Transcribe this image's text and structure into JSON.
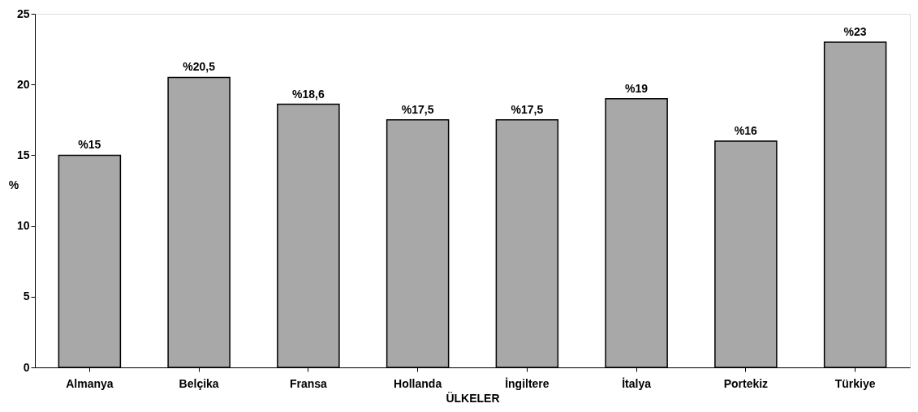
{
  "chart_data": {
    "type": "bar",
    "xlabel": "ÜLKELER",
    "ylabel": "%",
    "categories": [
      "Almanya",
      "Belçika",
      "Fransa",
      "Hollanda",
      "İngiltere",
      "İtalya",
      "Portekiz",
      "Türkiye"
    ],
    "values": [
      15,
      20.5,
      18.6,
      17.5,
      17.5,
      19,
      16,
      23
    ],
    "value_labels": [
      "%15",
      "%20,5",
      "%18,6",
      "%17,5",
      "%17,5",
      "%19",
      "%16",
      "%23"
    ],
    "color": "#a8a8a8",
    "ylim": [
      0,
      25
    ],
    "yticks": [
      0,
      5,
      10,
      15,
      20,
      25
    ],
    "grid": false
  }
}
